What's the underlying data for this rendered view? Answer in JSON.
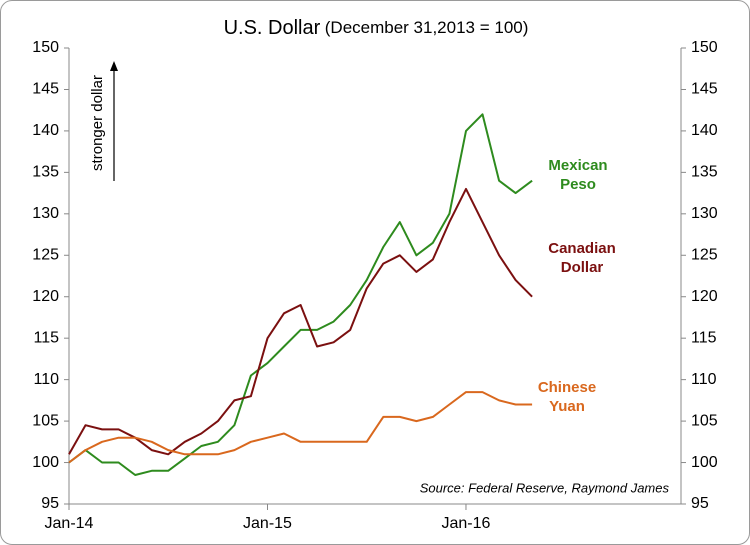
{
  "chart_data": {
    "type": "line",
    "title": "U.S. Dollar",
    "subtitle": "(December 31,2013 = 100)",
    "annotation": "stronger dollar",
    "source": "Source: Federal Reserve, Raymond James",
    "x": [
      "2014-01",
      "2014-02",
      "2014-03",
      "2014-04",
      "2014-05",
      "2014-06",
      "2014-07",
      "2014-08",
      "2014-09",
      "2014-10",
      "2014-11",
      "2014-12",
      "2015-01",
      "2015-02",
      "2015-03",
      "2015-04",
      "2015-05",
      "2015-06",
      "2015-07",
      "2015-08",
      "2015-09",
      "2015-10",
      "2015-11",
      "2015-12",
      "2016-01",
      "2016-02",
      "2016-03",
      "2016-04",
      "2016-05"
    ],
    "series": [
      {
        "name": "Mexican Peso",
        "color": "#2e8b1e",
        "values": [
          100,
          101.5,
          100,
          100,
          98.5,
          99,
          99,
          100.5,
          102,
          102.5,
          104.5,
          110.5,
          112,
          114,
          116,
          116,
          117,
          119,
          122,
          126,
          129,
          125,
          126.5,
          130,
          140,
          142,
          134,
          132.5,
          134
        ]
      },
      {
        "name": "Canadian Dollar",
        "color": "#7b1010",
        "values": [
          101,
          104.5,
          104,
          104,
          103,
          101.5,
          101,
          102.5,
          103.5,
          105,
          107.5,
          108,
          115,
          118,
          119,
          114,
          114.5,
          116,
          121,
          124,
          125,
          123,
          124.5,
          129,
          133,
          129,
          125,
          122,
          120
        ]
      },
      {
        "name": "Chinese Yuan",
        "color": "#d9681e",
        "values": [
          100,
          101.5,
          102.5,
          103,
          103,
          102.5,
          101.5,
          101,
          101,
          101,
          101.5,
          102.5,
          103,
          103.5,
          102.5,
          102.5,
          102.5,
          102.5,
          102.5,
          105.5,
          105.5,
          105,
          105.5,
          107,
          108.5,
          108.5,
          107.5,
          107,
          107
        ]
      }
    ],
    "xlim": [
      "2014-01",
      "2017-02"
    ],
    "xticks": [
      {
        "value": "2014-01",
        "label": "Jan-14"
      },
      {
        "value": "2015-01",
        "label": "Jan-15"
      },
      {
        "value": "2016-01",
        "label": "Jan-16"
      }
    ],
    "ylim": [
      95,
      150
    ],
    "yticks": [
      95,
      100,
      105,
      110,
      115,
      120,
      125,
      130,
      135,
      140,
      145,
      150
    ],
    "y2lim": [
      95,
      150
    ],
    "y2ticks": [
      95,
      100,
      105,
      110,
      115,
      120,
      125,
      130,
      135,
      140,
      145,
      150
    ],
    "grid": false
  }
}
